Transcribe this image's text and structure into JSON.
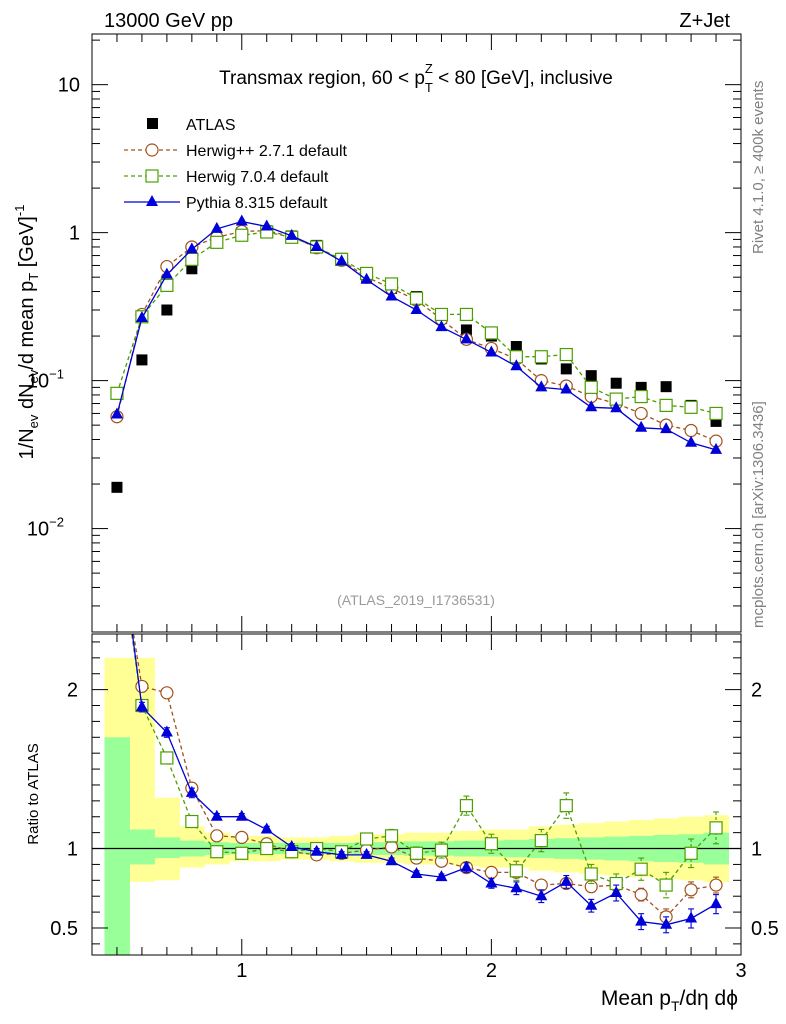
{
  "header": {
    "energy_label": "13000 GeV pp",
    "process_label": "Z+Jet",
    "side_label_top": "Rivet 4.1.0, ≥ 400k events",
    "side_label_bottom": "mcplots.cern.ch [arXiv:1306.3436]"
  },
  "chart_data": [
    {
      "type": "scatter",
      "title": "Transmax region, 60 < pT^Z < 80 [GeV], inclusive",
      "title_parts": {
        "before": "Transmax region, 60 < p",
        "sub": "T",
        "sup": "Z",
        "after": " < 80 [GeV], inclusive"
      },
      "watermark": "(ATLAS_2019_I1736531)",
      "ylabel": "1/N_ev dN_ev/d mean p_T [GeV]^-1",
      "ylabel_parts": {
        "a": "1/N",
        "a_sub": "ev",
        "b": " dN",
        "b_sub": "ev",
        "c": "/d mean p",
        "c_sub": "T",
        "d": " [GeV]",
        "d_sup": "-1"
      },
      "yscale": "log",
      "ylim": [
        0.002,
        22
      ],
      "xlim": [
        0.4,
        3.0
      ],
      "yticks": [
        {
          "value": 0.01,
          "label": "10",
          "sup": "−2"
        },
        {
          "value": 0.1,
          "label": "10",
          "sup": "−1"
        },
        {
          "value": 1,
          "label": "1",
          "sup": ""
        },
        {
          "value": 10,
          "label": "10",
          "sup": ""
        }
      ],
      "legend_position": "top-left",
      "x": [
        0.5,
        0.6,
        0.7,
        0.8,
        0.9,
        1.0,
        1.1,
        1.2,
        1.3,
        1.4,
        1.5,
        1.6,
        1.7,
        1.8,
        1.9,
        2.0,
        2.1,
        2.2,
        2.3,
        2.4,
        2.5,
        2.6,
        2.7,
        2.8,
        2.9
      ],
      "series": [
        {
          "name": "ATLAS",
          "color": "#000000",
          "marker": "square-filled",
          "line": "none",
          "values": [
            0.019,
            0.138,
            0.3,
            0.57,
            0.88,
            1.0,
            1.03,
            0.95,
            0.82,
            0.67,
            0.5,
            0.42,
            0.37,
            0.28,
            0.22,
            0.2,
            0.17,
            0.14,
            0.12,
            0.108,
            0.096,
            0.09,
            0.091,
            0.068,
            0.053
          ]
        },
        {
          "name": "Herwig++ 2.7.1 default",
          "color": "#a0521e",
          "marker": "circle-open",
          "line": "dashed",
          "values": [
            0.057,
            0.28,
            0.59,
            0.8,
            0.93,
            1.02,
            1.03,
            0.94,
            0.79,
            0.65,
            0.5,
            0.42,
            0.35,
            0.26,
            0.19,
            0.165,
            0.14,
            0.1,
            0.092,
            0.078,
            0.07,
            0.06,
            0.05,
            0.046,
            0.039
          ]
        },
        {
          "name": "Herwig 7.0.4 default",
          "color": "#4c9e00",
          "marker": "square-open",
          "line": "dashed",
          "values": [
            0.082,
            0.27,
            0.44,
            0.66,
            0.86,
            0.96,
            1.01,
            0.93,
            0.8,
            0.66,
            0.53,
            0.45,
            0.36,
            0.28,
            0.28,
            0.21,
            0.145,
            0.145,
            0.15,
            0.09,
            0.075,
            0.078,
            0.068,
            0.066,
            0.06
          ]
        },
        {
          "name": "Pythia 8.315 default",
          "color": "#0000d8",
          "marker": "triangle-filled",
          "line": "solid",
          "values": [
            0.059,
            0.265,
            0.52,
            0.77,
            1.06,
            1.19,
            1.1,
            0.95,
            0.8,
            0.64,
            0.48,
            0.37,
            0.3,
            0.23,
            0.19,
            0.155,
            0.125,
            0.09,
            0.087,
            0.066,
            0.065,
            0.048,
            0.047,
            0.038,
            0.034
          ]
        }
      ]
    },
    {
      "type": "line",
      "ylabel": "Ratio to ATLAS",
      "xlabel": "Mean pT/dη dϕ",
      "xlabel_parts": {
        "a": "Mean p",
        "a_sub": "T",
        "b": "/dη dϕ"
      },
      "xlim": [
        0.4,
        3.0
      ],
      "ylim": [
        0.33,
        2.35
      ],
      "xticks": [
        1,
        2,
        3
      ],
      "yticks": [
        0.5,
        1,
        2
      ],
      "reference_line": 1,
      "band_edges": [
        0.45,
        0.55,
        0.65,
        0.75,
        0.85,
        0.95,
        1.05,
        1.15,
        1.25,
        1.35,
        1.45,
        1.55,
        1.65,
        1.75,
        1.85,
        1.95,
        2.05,
        2.15,
        2.25,
        2.35,
        2.45,
        2.55,
        2.65,
        2.75,
        2.85,
        2.95
      ],
      "inner_band": [
        [
          0.3,
          1.7
        ],
        [
          0.9,
          1.12
        ],
        [
          0.94,
          1.07
        ],
        [
          0.95,
          1.05
        ],
        [
          0.96,
          1.04
        ],
        [
          0.965,
          1.035
        ],
        [
          0.965,
          1.035
        ],
        [
          0.965,
          1.035
        ],
        [
          0.965,
          1.035
        ],
        [
          0.965,
          1.035
        ],
        [
          0.96,
          1.04
        ],
        [
          0.96,
          1.04
        ],
        [
          0.955,
          1.045
        ],
        [
          0.955,
          1.045
        ],
        [
          0.95,
          1.05
        ],
        [
          0.95,
          1.05
        ],
        [
          0.945,
          1.055
        ],
        [
          0.94,
          1.06
        ],
        [
          0.935,
          1.065
        ],
        [
          0.93,
          1.07
        ],
        [
          0.925,
          1.075
        ],
        [
          0.92,
          1.08
        ],
        [
          0.915,
          1.085
        ],
        [
          0.91,
          1.09
        ],
        [
          0.9,
          1.1
        ]
      ],
      "outer_band": [
        [
          0.3,
          2.2
        ],
        [
          0.79,
          2.2
        ],
        [
          0.8,
          1.32
        ],
        [
          0.88,
          1.14
        ],
        [
          0.9,
          1.1
        ],
        [
          0.92,
          1.08
        ],
        [
          0.92,
          1.08
        ],
        [
          0.93,
          1.07
        ],
        [
          0.93,
          1.07
        ],
        [
          0.92,
          1.08
        ],
        [
          0.91,
          1.09
        ],
        [
          0.91,
          1.09
        ],
        [
          0.9,
          1.1
        ],
        [
          0.9,
          1.1
        ],
        [
          0.89,
          1.11
        ],
        [
          0.88,
          1.12
        ],
        [
          0.88,
          1.12
        ],
        [
          0.86,
          1.14
        ],
        [
          0.85,
          1.15
        ],
        [
          0.84,
          1.16
        ],
        [
          0.83,
          1.17
        ],
        [
          0.82,
          1.18
        ],
        [
          0.81,
          1.19
        ],
        [
          0.8,
          1.2
        ],
        [
          0.79,
          1.21
        ]
      ],
      "x": [
        0.5,
        0.6,
        0.7,
        0.8,
        0.9,
        1.0,
        1.1,
        1.2,
        1.3,
        1.4,
        1.5,
        1.6,
        1.7,
        1.8,
        1.9,
        2.0,
        2.1,
        2.2,
        2.3,
        2.4,
        2.5,
        2.6,
        2.7,
        2.8,
        2.9
      ],
      "series": [
        {
          "name": "Herwig++ 2.7.1 default",
          "color": "#a0521e",
          "marker": "circle-open",
          "line": "dashed",
          "values": [
            3.0,
            2.02,
            1.98,
            1.38,
            1.08,
            1.07,
            1.03,
            0.98,
            0.96,
            0.97,
            0.99,
            1.01,
            0.94,
            0.92,
            0.88,
            0.85,
            0.85,
            0.77,
            0.78,
            0.76,
            0.77,
            0.71,
            0.57,
            0.74,
            0.77
          ]
        },
        {
          "name": "Herwig 7.0.4 default",
          "color": "#4c9e00",
          "marker": "square-open",
          "line": "dashed",
          "values": [
            3.0,
            1.9,
            1.57,
            1.17,
            0.98,
            0.97,
            1.0,
            0.98,
            1.0,
            0.98,
            1.06,
            1.08,
            0.97,
            0.99,
            1.27,
            1.03,
            0.86,
            1.05,
            1.27,
            0.84,
            0.78,
            0.87,
            0.77,
            0.97,
            1.13
          ]
        },
        {
          "name": "Pythia 8.315 default",
          "color": "#0000d8",
          "marker": "triangle-filled",
          "line": "solid",
          "values": [
            3.1,
            1.89,
            1.73,
            1.35,
            1.2,
            1.2,
            1.12,
            1.01,
            0.98,
            0.96,
            0.96,
            0.92,
            0.84,
            0.82,
            0.88,
            0.78,
            0.75,
            0.7,
            0.79,
            0.64,
            0.72,
            0.54,
            0.52,
            0.56,
            0.65
          ]
        }
      ],
      "error_bars": {
        "Herwig++ 2.7.1 default": [
          0,
          0.02,
          0.02,
          0.02,
          0.02,
          0.02,
          0.02,
          0.02,
          0.02,
          0.02,
          0.02,
          0.02,
          0.02,
          0.02,
          0.03,
          0.03,
          0.03,
          0.03,
          0.03,
          0.03,
          0.04,
          0.04,
          0.05,
          0.05,
          0.05
        ],
        "Herwig 7.0.4 default": [
          0,
          0.03,
          0.03,
          0.03,
          0.02,
          0.02,
          0.02,
          0.02,
          0.02,
          0.03,
          0.03,
          0.04,
          0.04,
          0.05,
          0.06,
          0.06,
          0.06,
          0.07,
          0.08,
          0.06,
          0.06,
          0.07,
          0.08,
          0.09,
          0.1
        ],
        "Pythia 8.315 default": [
          0,
          0.03,
          0.03,
          0.03,
          0.02,
          0.02,
          0.02,
          0.02,
          0.02,
          0.02,
          0.02,
          0.02,
          0.02,
          0.02,
          0.03,
          0.03,
          0.04,
          0.04,
          0.04,
          0.04,
          0.05,
          0.05,
          0.05,
          0.06,
          0.06
        ]
      }
    }
  ]
}
